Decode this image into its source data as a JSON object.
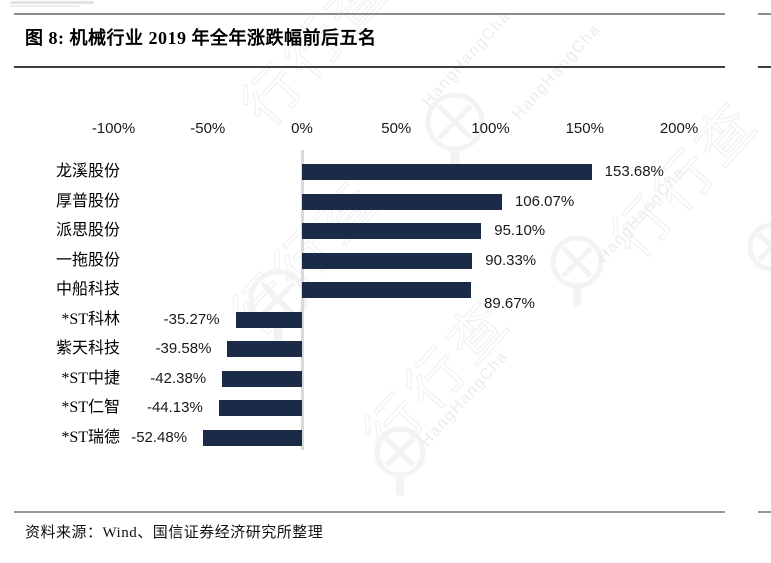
{
  "page": {
    "title": "图 8: 机械行业 2019 年全年涨跌幅前后五名",
    "source": "资料来源：Wind、国信证券经济研究所整理"
  },
  "watermark": {
    "cn": "行行查",
    "en": "HangHangCha"
  },
  "colors": {
    "bar": "#1b2b47",
    "zero_axis": "#d9d9d9",
    "rule_gray": "#8c8c8c",
    "rule_dark": "#3f3f3f",
    "text": "#1a1a1a"
  },
  "chart_data": {
    "type": "bar",
    "orientation": "horizontal",
    "title": "图 8: 机械行业 2019 年全年涨跌幅前后五名",
    "categories": [
      "龙溪股份",
      "厚普股份",
      "派思股份",
      "一拖股份",
      "中船科技",
      "*ST科林",
      "紫天科技",
      "*ST中捷",
      "*ST仁智",
      "*ST瑞德"
    ],
    "values": [
      153.68,
      106.07,
      95.1,
      90.33,
      89.67,
      -35.27,
      -39.58,
      -42.38,
      -44.13,
      -52.48
    ],
    "value_labels": [
      "153.68%",
      "106.07%",
      "95.10%",
      "90.33%",
      "89.67%",
      "-35.27%",
      "-39.58%",
      "-42.38%",
      "-44.13%",
      "-52.48%"
    ],
    "x_tick_labels": [
      "-100%",
      "-50%",
      "0%",
      "50%",
      "100%",
      "150%",
      "200%"
    ],
    "x_tick_values": [
      -100,
      -50,
      0,
      50,
      100,
      150,
      200
    ],
    "xlim": [
      -100,
      200
    ],
    "axis_labels_position": "top",
    "grid": false,
    "legend": false,
    "bar_color": "#1b2b47",
    "source": "资料来源：Wind、国信证券经济研究所整理"
  }
}
